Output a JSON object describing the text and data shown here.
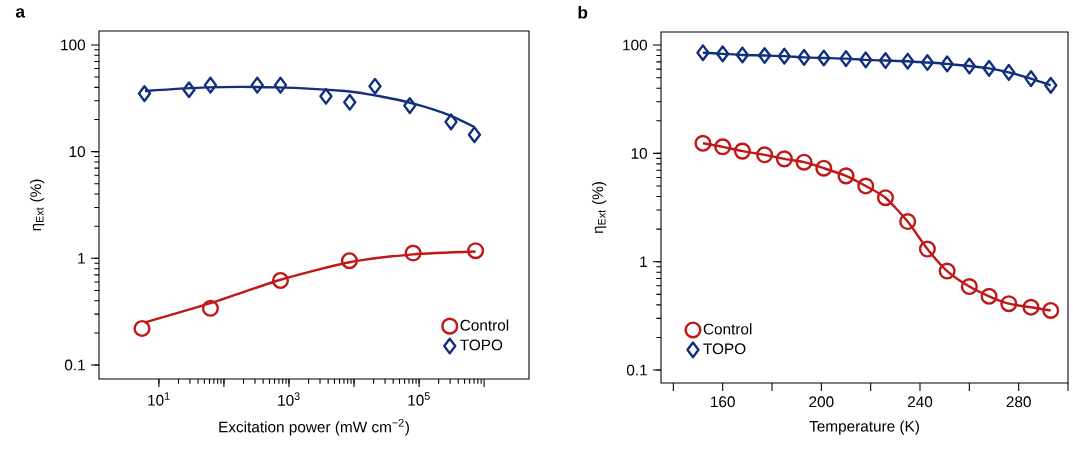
{
  "chart_data": [
    {
      "type": "scatter",
      "title": "a",
      "xlabel": "Excitation power (mW cm$^{−2}$)",
      "ylabel": "η$_{Ext}$ (%)",
      "log": "xy",
      "xlim": [
        1.2,
        4900000
      ],
      "ylim": [
        0.074,
        135
      ],
      "xticks": [
        {
          "value": 10,
          "label": "10$^{1}$"
        },
        {
          "value": 100,
          "label": null
        },
        {
          "value": 1000,
          "label": "10$^{3}$"
        },
        {
          "value": 10000,
          "label": null
        },
        {
          "value": 100000,
          "label": "10$^{5}$"
        },
        {
          "value": 1000000,
          "label": null
        }
      ],
      "yticks": [
        0.1,
        1,
        10,
        100
      ],
      "legend": "bottom right",
      "series": [
        {
          "name": "Control",
          "color": "#c01818",
          "marker": "circle",
          "x": [
            5.5,
            62,
            740,
            8500,
            81000,
            740000
          ],
          "values": [
            0.22,
            0.34,
            0.62,
            0.95,
            1.12,
            1.18
          ]
        },
        {
          "name": "TOPO",
          "color": "#12307e",
          "marker": "diamond",
          "x": [
            6.0,
            29,
            62,
            325,
            740,
            3700,
            8600,
            21000,
            72000,
            310000,
            710000
          ],
          "values": [
            35,
            38,
            42,
            42,
            42,
            33,
            29,
            41,
            27,
            19,
            14.4
          ]
        },
        {
          "type": "line",
          "color": "#c01818",
          "x": [
            6.0,
            62,
            740,
            8500,
            81000,
            740000
          ],
          "values": [
            0.25,
            0.38,
            0.63,
            0.92,
            1.09,
            1.16
          ]
        },
        {
          "type": "line",
          "color": "#12307e",
          "x": [
            6.1,
            55,
            630,
            7200,
            25000,
            85000,
            290000,
            710000
          ],
          "values": [
            37,
            40,
            40,
            37,
            33,
            28,
            22,
            17
          ]
        }
      ]
    },
    {
      "type": "line",
      "title": "b",
      "xlabel": "Temperature (K)",
      "ylabel": "η$_{Ext}$ (%)",
      "log": "y",
      "xlim": [
        135,
        300
      ],
      "ylim": [
        0.076,
        132
      ],
      "xticks": [
        {
          "value": 140,
          "label": null
        },
        160,
        {
          "value": 180,
          "label": null
        },
        200,
        {
          "value": 220,
          "label": null
        },
        240,
        {
          "value": 260,
          "label": null
        },
        280,
        {
          "value": 300,
          "label": null
        }
      ],
      "yticks": [
        0.1,
        1,
        10,
        100
      ],
      "legend": "bottom left",
      "x": [
        152,
        160,
        168,
        177,
        185,
        193,
        201,
        210,
        218,
        226,
        235,
        243,
        251,
        260,
        268,
        276,
        285,
        293
      ],
      "series": [
        {
          "name": "Control",
          "color": "#c01818",
          "marker": "circle",
          "values": [
            12.4,
            11.5,
            10.5,
            9.7,
            8.9,
            8.3,
            7.3,
            6.2,
            5.0,
            3.9,
            2.35,
            1.31,
            0.82,
            0.59,
            0.48,
            0.41,
            0.38,
            0.355
          ]
        },
        {
          "name": "TOPO",
          "color": "#12307e",
          "marker": "diamond",
          "values": [
            85,
            83,
            81,
            80,
            79,
            77,
            76,
            75,
            73,
            72,
            71,
            69,
            67,
            64,
            61,
            56,
            49,
            42.5
          ]
        }
      ]
    }
  ]
}
